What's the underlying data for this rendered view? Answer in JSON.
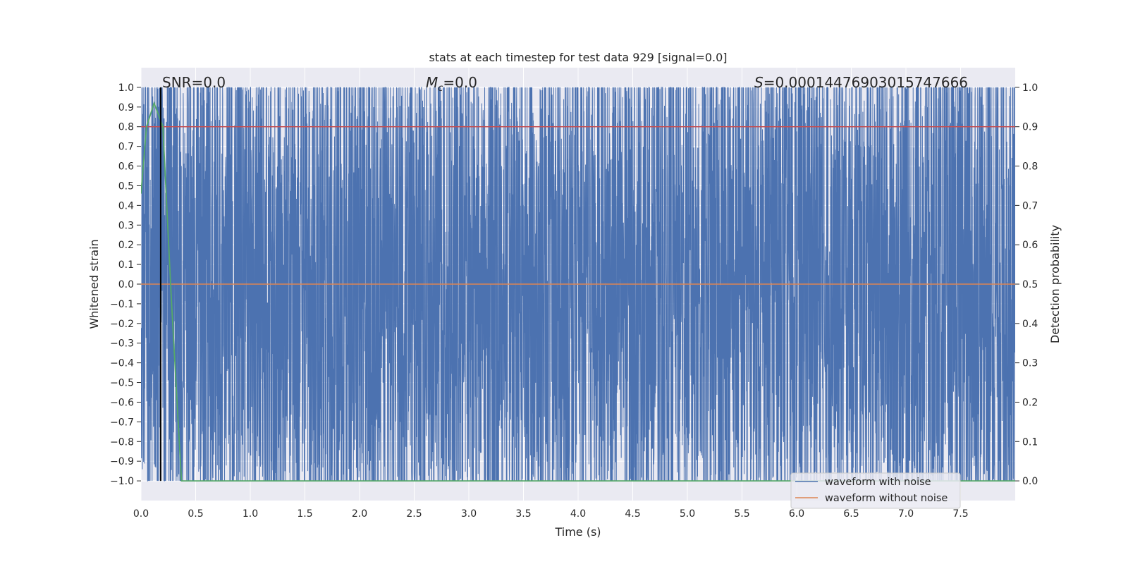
{
  "chart_data": {
    "type": "line",
    "title": "stats at each timestep for test data 929 [signal=0.0]",
    "xlabel": "Time (s)",
    "ylabel": "Whitened strain",
    "ylabel_right": "Detection probability",
    "xlim": [
      0.0,
      8.0
    ],
    "ylim": [
      -1.1,
      1.1
    ],
    "ylim_right": [
      -0.05,
      1.05
    ],
    "x_ticks": [
      0.0,
      0.5,
      1.0,
      1.5,
      2.0,
      2.5,
      3.0,
      3.5,
      4.0,
      4.5,
      5.0,
      5.5,
      6.0,
      6.5,
      7.0,
      7.5
    ],
    "x_tick_labels": [
      "0.0",
      "0.5",
      "1.0",
      "1.5",
      "2.0",
      "2.5",
      "3.0",
      "3.5",
      "4.0",
      "4.5",
      "5.0",
      "5.5",
      "6.0",
      "6.5",
      "7.0",
      "7.5"
    ],
    "y_ticks": [
      1.0,
      0.9,
      0.8,
      0.7,
      0.6,
      0.5,
      0.4,
      0.3,
      0.2,
      0.1,
      0.0,
      -0.1,
      -0.2,
      -0.3,
      -0.4,
      -0.5,
      -0.6,
      -0.7,
      -0.8,
      -0.9,
      -1.0
    ],
    "y_tick_labels": [
      "1.0",
      "0.9",
      "0.8",
      "0.7",
      "0.6",
      "0.5",
      "0.4",
      "0.3",
      "0.2",
      "0.1",
      "0.0",
      "−0.1",
      "−0.2",
      "−0.3",
      "−0.4",
      "−0.5",
      "−0.6",
      "−0.7",
      "−0.8",
      "−0.9",
      "−1.0"
    ],
    "y_right_ticks": [
      1.0,
      0.9,
      0.8,
      0.7,
      0.6,
      0.5,
      0.4,
      0.3,
      0.2,
      0.1,
      0.0
    ],
    "y_right_tick_labels": [
      "1.0",
      "0.9",
      "0.8",
      "0.7",
      "0.6",
      "0.5",
      "0.4",
      "0.3",
      "0.2",
      "0.1",
      "0.0"
    ],
    "annotations": {
      "snr": "SNR=0.0",
      "mc_symbol": "M",
      "mc_subscript": "c",
      "mc_value": "=0.0",
      "s_symbol": "S",
      "s_value": "=0.00014476903015747666"
    },
    "series": [
      {
        "name": "waveform with noise",
        "color": "#4c72b0",
        "description_values": "dense whitened noise spanning -1.0 to 1.0 over 0.0–8.0 s",
        "range": [
          -1.0,
          1.0
        ]
      },
      {
        "name": "waveform without noise",
        "color": "#dd8452",
        "x": [
          0.0,
          8.0
        ],
        "y": [
          0.0,
          0.0
        ]
      },
      {
        "color": "#c44e52",
        "axis": "right",
        "x": [
          0.0,
          8.0
        ],
        "y": [
          0.9,
          0.9
        ]
      },
      {
        "color": "#55a868",
        "axis": "right",
        "x": [
          0.0,
          0.05,
          0.12,
          0.2,
          0.28,
          0.37,
          8.0
        ],
        "y": [
          0.73,
          0.9,
          0.96,
          0.9,
          0.45,
          0.0,
          0.0
        ]
      }
    ],
    "vline": {
      "x": 0.18,
      "color": "#000000"
    },
    "legend": {
      "placement": "lower-right",
      "entries": [
        "waveform with noise",
        "waveform without noise"
      ]
    },
    "grid": true
  }
}
